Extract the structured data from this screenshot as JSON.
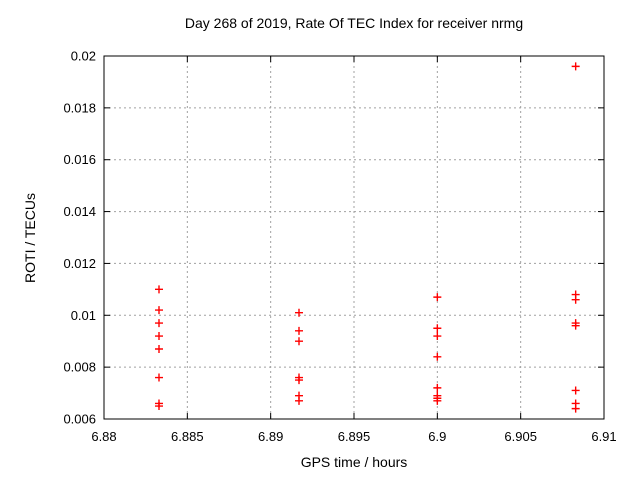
{
  "window": {
    "title": "Day 268 of 2019, Rate Of TEC Index for receiver nrmg"
  },
  "colors": {
    "background": "#ffffff",
    "marker": "#ff0000",
    "grid": "#a0a0a0",
    "axis": "#000000",
    "text": "#000000"
  },
  "chart_data": {
    "type": "scatter",
    "title": "Day 268 of 2019, Rate Of TEC Index for receiver nrmg",
    "xlabel": "GPS time / hours",
    "ylabel": "ROTI / TECUs",
    "xlim": [
      6.88,
      6.91
    ],
    "ylim": [
      0.006,
      0.02
    ],
    "xticks": [
      6.88,
      6.885,
      6.89,
      6.895,
      6.9,
      6.905,
      6.91
    ],
    "xtick_labels": [
      "6.88",
      "6.885",
      "6.89",
      "6.895",
      "6.9",
      "6.905",
      "6.91"
    ],
    "yticks": [
      0.006,
      0.008,
      0.01,
      0.012,
      0.014,
      0.016,
      0.018,
      0.02
    ],
    "ytick_labels": [
      "0.006",
      "0.008",
      "0.01",
      "0.012",
      "0.014",
      "0.016",
      "0.018",
      "0.02"
    ],
    "grid": true,
    "legend": "none",
    "marker": {
      "shape": "plus",
      "color": "#ff0000",
      "size": 8
    },
    "series": [
      {
        "name": "ROTI",
        "points": [
          [
            6.8833,
            0.011
          ],
          [
            6.8833,
            0.0102
          ],
          [
            6.8833,
            0.0097
          ],
          [
            6.8833,
            0.0092
          ],
          [
            6.8833,
            0.0087
          ],
          [
            6.8833,
            0.0076
          ],
          [
            6.8833,
            0.0066
          ],
          [
            6.8833,
            0.0065
          ],
          [
            6.8917,
            0.0101
          ],
          [
            6.8917,
            0.0094
          ],
          [
            6.8917,
            0.009
          ],
          [
            6.8917,
            0.0076
          ],
          [
            6.8917,
            0.0075
          ],
          [
            6.8917,
            0.0069
          ],
          [
            6.8917,
            0.0067
          ],
          [
            6.9,
            0.0107
          ],
          [
            6.9,
            0.0095
          ],
          [
            6.9,
            0.0092
          ],
          [
            6.9,
            0.0084
          ],
          [
            6.9,
            0.0072
          ],
          [
            6.9,
            0.0069
          ],
          [
            6.9,
            0.0068
          ],
          [
            6.9,
            0.0067
          ],
          [
            6.9083,
            0.0196
          ],
          [
            6.9083,
            0.0108
          ],
          [
            6.9083,
            0.0106
          ],
          [
            6.9083,
            0.0097
          ],
          [
            6.9083,
            0.0096
          ],
          [
            6.9083,
            0.0071
          ],
          [
            6.9083,
            0.0066
          ],
          [
            6.9083,
            0.0064
          ]
        ]
      }
    ]
  }
}
